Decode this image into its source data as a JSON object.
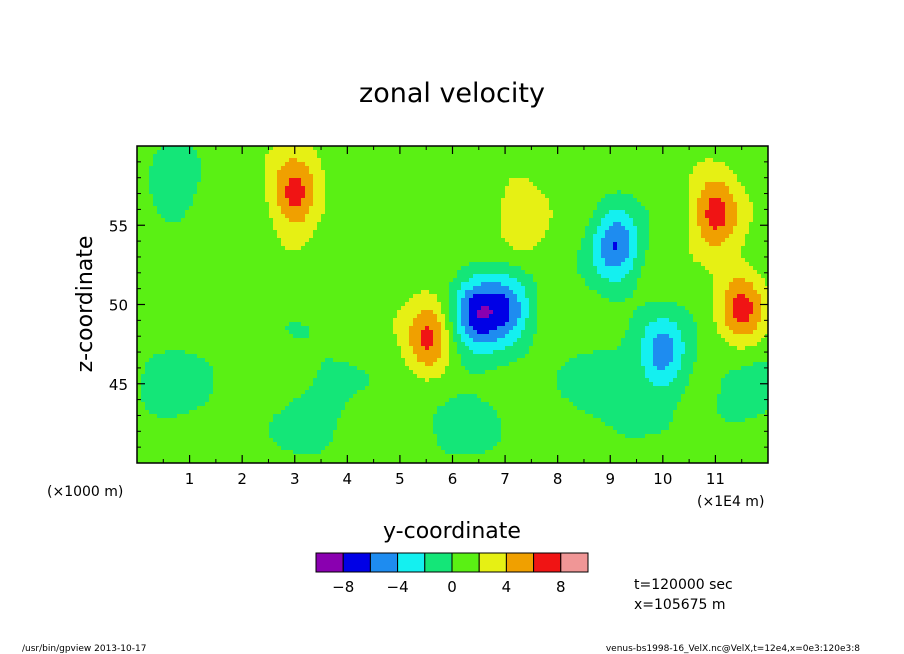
{
  "chart_data": {
    "type": "heatmap",
    "title": "zonal velocity",
    "xlabel": "y-coordinate",
    "ylabel": "z-coordinate",
    "x_ticks": [
      "1",
      "2",
      "3",
      "4",
      "5",
      "6",
      "7",
      "8",
      "9",
      "10",
      "11"
    ],
    "x_tick_values": [
      1,
      2,
      3,
      4,
      5,
      6,
      7,
      8,
      9,
      10,
      11
    ],
    "x_scale_note_left": "(×1000 m)",
    "x_scale_note_right": "(×1E4 m)",
    "y_ticks": [
      "45",
      "50",
      "55"
    ],
    "y_tick_values": [
      45,
      50,
      55
    ],
    "xlim": [
      0,
      12
    ],
    "ylim": [
      40,
      60
    ],
    "colorbar": {
      "levels": [
        -10,
        -8,
        -6,
        -4,
        -2,
        0,
        2,
        4,
        6,
        8,
        10
      ],
      "tick_labels": [
        "−8",
        "−4",
        "0",
        "4",
        "8"
      ],
      "tick_values": [
        -8,
        -4,
        0,
        4,
        8
      ],
      "colors": [
        "#8a00b0",
        "#0000e6",
        "#1e8cf0",
        "#14f0f0",
        "#14e678",
        "#5af014",
        "#e6f014",
        "#f0a000",
        "#f01414",
        "#f09696"
      ]
    },
    "features": [
      {
        "y": 6.45,
        "z": 49.6,
        "u": -7
      },
      {
        "y": 7.05,
        "z": 49.8,
        "u": -6
      },
      {
        "y": 9.1,
        "z": 53.8,
        "u": -7
      },
      {
        "y": 10.0,
        "z": 46.8,
        "u": -6
      },
      {
        "y": 3.0,
        "z": 56.9,
        "u": 6
      },
      {
        "y": 11.0,
        "z": 55.8,
        "u": 6
      },
      {
        "y": 11.5,
        "z": 49.8,
        "u": 6
      },
      {
        "y": 5.55,
        "z": 47.8,
        "u": 6
      },
      {
        "y": 7.3,
        "z": 55.5,
        "u": 3
      },
      {
        "y": 0.7,
        "z": 57.2,
        "u": -3
      }
    ]
  },
  "annotations": {
    "time": "t=120000 sec",
    "x_position": "x=105675 m",
    "footer_left": "/usr/bin/gpview  2013-10-17",
    "footer_right": "venus-bs1998-16_VelX.nc@VelX,t=12e4,x=0e3:120e3:8"
  }
}
